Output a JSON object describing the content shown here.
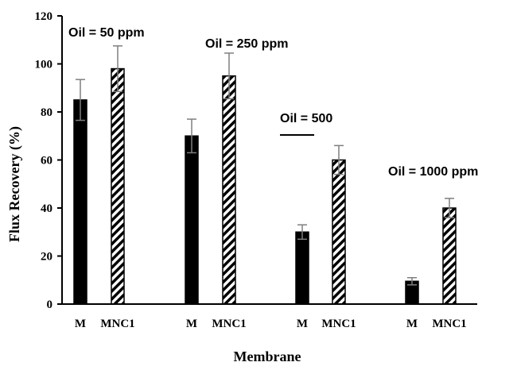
{
  "chart_data": {
    "type": "bar",
    "xlabel": "Membrane",
    "ylabel": "Flux Recovery (%)",
    "ylim": [
      0,
      120
    ],
    "yticks": [
      "0",
      "20",
      "40",
      "60",
      "80",
      "100",
      "120"
    ],
    "grid": false,
    "groups": [
      {
        "label": "Oil = 50 ppm",
        "bars": [
          {
            "category": "M",
            "value": 85,
            "error": 8.5,
            "fill": "solid"
          },
          {
            "category": "MNC1",
            "value": 98,
            "error": 9.5,
            "fill": "hatched"
          }
        ]
      },
      {
        "label": "Oil = 250 ppm",
        "bars": [
          {
            "category": "M",
            "value": 70,
            "error": 7,
            "fill": "solid"
          },
          {
            "category": "MNC1",
            "value": 95,
            "error": 9.5,
            "fill": "hatched"
          }
        ]
      },
      {
        "label": "Oil = 500",
        "bars": [
          {
            "category": "M",
            "value": 30,
            "error": 3,
            "fill": "solid"
          },
          {
            "category": "MNC1",
            "value": 60,
            "error": 6,
            "fill": "hatched"
          }
        ]
      },
      {
        "label": "Oil = 1000 ppm",
        "bars": [
          {
            "category": "M",
            "value": 9.5,
            "error": 1.5,
            "fill": "solid"
          },
          {
            "category": "MNC1",
            "value": 40,
            "error": 4,
            "fill": "hatched"
          }
        ]
      }
    ]
  },
  "colors": {
    "bar": "#000000",
    "hatch_background": "#ffffff",
    "error_bar": "#7f7f7f",
    "axis": "#000000"
  }
}
